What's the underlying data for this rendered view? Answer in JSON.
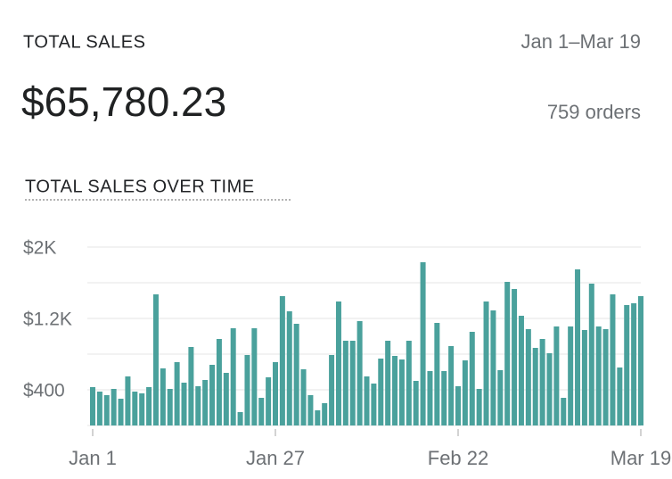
{
  "header": {
    "title": "TOTAL SALES",
    "date_range": "Jan 1–Mar 19",
    "total": "$65,780.23",
    "orders": "759 orders"
  },
  "chart_data": {
    "type": "bar",
    "title": "TOTAL SALES OVER TIME",
    "color": "#4aa19c",
    "categories": [
      "Jan 1",
      null,
      null,
      null,
      null,
      null,
      null,
      null,
      null,
      null,
      null,
      null,
      null,
      null,
      null,
      null,
      null,
      null,
      null,
      null,
      null,
      null,
      null,
      null,
      null,
      null,
      "Jan 27",
      null,
      null,
      null,
      null,
      null,
      null,
      null,
      null,
      null,
      null,
      null,
      null,
      null,
      null,
      null,
      null,
      null,
      null,
      null,
      null,
      null,
      null,
      null,
      null,
      null,
      "Feb 22",
      null,
      null,
      null,
      null,
      null,
      null,
      null,
      null,
      null,
      null,
      null,
      null,
      null,
      null,
      null,
      null,
      null,
      null,
      null,
      null,
      null,
      null,
      null,
      null,
      null,
      "Mar 19"
    ],
    "values": [
      430,
      380,
      340,
      410,
      300,
      550,
      380,
      360,
      430,
      1470,
      640,
      410,
      710,
      480,
      880,
      440,
      510,
      680,
      970,
      590,
      1090,
      150,
      790,
      1090,
      310,
      540,
      710,
      1450,
      1280,
      1140,
      630,
      340,
      170,
      250,
      790,
      1390,
      950,
      950,
      1170,
      550,
      470,
      750,
      950,
      780,
      740,
      950,
      500,
      1830,
      610,
      1150,
      610,
      890,
      440,
      730,
      1050,
      410,
      1390,
      1290,
      620,
      1610,
      1530,
      1230,
      1080,
      870,
      970,
      810,
      1110,
      310,
      1110,
      1750,
      1070,
      1590,
      1110,
      1080,
      1470,
      650,
      1350,
      1370,
      1450
    ],
    "ylim": [
      0,
      2000
    ],
    "yticks": [
      {
        "value": 400,
        "label": "$400"
      },
      {
        "value": 1200,
        "label": "$1.2K"
      },
      {
        "value": 2000,
        "label": "$2K"
      }
    ],
    "grid_lines": [
      0,
      400,
      800,
      1200,
      1600,
      2000
    ],
    "grid": true
  }
}
